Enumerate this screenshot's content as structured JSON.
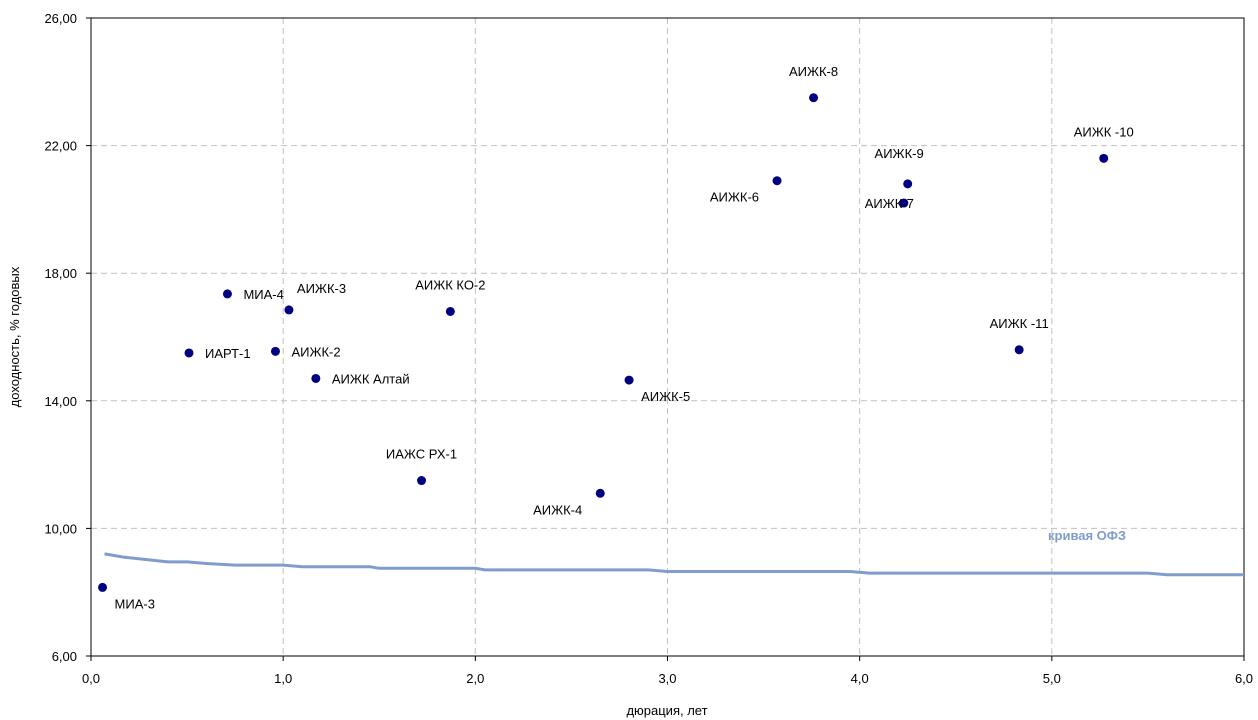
{
  "chart_data": {
    "type": "scatter",
    "xlabel": "дюрация, лет",
    "ylabel": "доходность, % годовых",
    "xlim": [
      0,
      6
    ],
    "ylim": [
      6,
      26
    ],
    "x_ticks": [
      "0,0",
      "1,0",
      "2,0",
      "3,0",
      "4,0",
      "5,0",
      "6,0"
    ],
    "y_ticks": [
      "6,00",
      "10,00",
      "14,00",
      "18,00",
      "22,00",
      "26,00"
    ],
    "grid": true,
    "colors": {
      "points": "#000080",
      "curve": "#7f9ccc",
      "curve_label": "#7f9ccc",
      "grid": "#c0c0c0"
    },
    "points": [
      {
        "label": "МИА-3",
        "x": 0.06,
        "y": 8.15,
        "anchor": "below-right"
      },
      {
        "label": "ИАРТ-1",
        "x": 0.51,
        "y": 15.5,
        "anchor": "right"
      },
      {
        "label": "МИА-4",
        "x": 0.71,
        "y": 17.35,
        "anchor": "right"
      },
      {
        "label": "АИЖК-2",
        "x": 0.96,
        "y": 15.55,
        "anchor": "right"
      },
      {
        "label": "АИЖК-3",
        "x": 1.03,
        "y": 16.85,
        "anchor": "above-right"
      },
      {
        "label": "АИЖК Алтай",
        "x": 1.17,
        "y": 14.7,
        "anchor": "right"
      },
      {
        "label": "ИАЖС РХ-1",
        "x": 1.72,
        "y": 11.5,
        "anchor": "above"
      },
      {
        "label": "АИЖК КО-2",
        "x": 1.87,
        "y": 16.8,
        "anchor": "above"
      },
      {
        "label": "АИЖК-4",
        "x": 2.65,
        "y": 11.1,
        "anchor": "below-left"
      },
      {
        "label": "АИЖК-5",
        "x": 2.8,
        "y": 14.65,
        "anchor": "below-right"
      },
      {
        "label": "АИЖК-6",
        "x": 3.57,
        "y": 20.9,
        "anchor": "below-left"
      },
      {
        "label": "АИЖК-8",
        "x": 3.76,
        "y": 23.5,
        "anchor": "above"
      },
      {
        "label": "АИЖК-7",
        "x": 4.23,
        "y": 20.2,
        "anchor": "left"
      },
      {
        "label": "АИЖК-9",
        "x": 4.25,
        "y": 20.8,
        "anchor": "above-left"
      },
      {
        "label": "АИЖК -11",
        "x": 4.83,
        "y": 15.6,
        "anchor": "above"
      },
      {
        "label": "АИЖК -10",
        "x": 5.27,
        "y": 21.6,
        "anchor": "above"
      }
    ],
    "series": [
      {
        "name": "кривая ОФЗ",
        "x": [
          0.07,
          0.17,
          0.4,
          0.5,
          0.6,
          0.75,
          1.0,
          1.1,
          1.45,
          1.5,
          2.0,
          2.05,
          2.4,
          2.9,
          3.0,
          3.95,
          4.05,
          5.5,
          5.6,
          6.0
        ],
        "y": [
          9.2,
          9.1,
          8.95,
          8.95,
          8.9,
          8.85,
          8.85,
          8.8,
          8.8,
          8.75,
          8.75,
          8.7,
          8.7,
          8.7,
          8.65,
          8.65,
          8.6,
          8.6,
          8.55,
          8.55
        ]
      }
    ]
  }
}
